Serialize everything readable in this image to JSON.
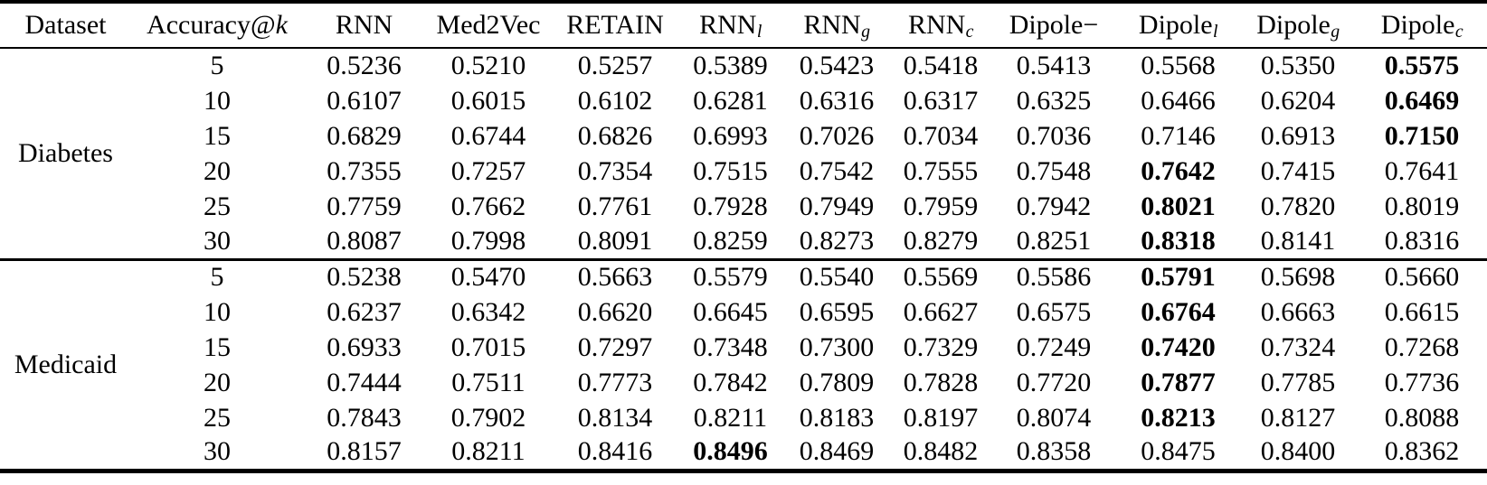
{
  "colors": {
    "text": "#000000",
    "background": "#ffffff",
    "rule": "#000000"
  },
  "table": {
    "columns": [
      {
        "name": "dataset",
        "label": "Dataset"
      },
      {
        "name": "accuracy-at-k",
        "label": "Accuracy@",
        "italic": "k"
      },
      {
        "name": "rnn",
        "label": "RNN"
      },
      {
        "name": "med2vec",
        "label": "Med2Vec"
      },
      {
        "name": "retain",
        "label": "RETAIN"
      },
      {
        "name": "rnn-l",
        "label": "RNN",
        "sub": "l"
      },
      {
        "name": "rnn-g",
        "label": "RNN",
        "sub": "g"
      },
      {
        "name": "rnn-c",
        "label": "RNN",
        "sub": "c"
      },
      {
        "name": "dipole-minus",
        "label": "Dipole−"
      },
      {
        "name": "dipole-l",
        "label": "Dipole",
        "sub": "l"
      },
      {
        "name": "dipole-g",
        "label": "Dipole",
        "sub": "g"
      },
      {
        "name": "dipole-c",
        "label": "Dipole",
        "sub": "c"
      }
    ],
    "sections": [
      {
        "dataset": "Diabetes",
        "rows": [
          {
            "k": "5",
            "values": [
              "0.5236",
              "0.5210",
              "0.5257",
              "0.5389",
              "0.5423",
              "0.5418",
              "0.5413",
              "0.5568",
              "0.5350",
              "0.5575"
            ],
            "bold": [
              9
            ]
          },
          {
            "k": "10",
            "values": [
              "0.6107",
              "0.6015",
              "0.6102",
              "0.6281",
              "0.6316",
              "0.6317",
              "0.6325",
              "0.6466",
              "0.6204",
              "0.6469"
            ],
            "bold": [
              9
            ]
          },
          {
            "k": "15",
            "values": [
              "0.6829",
              "0.6744",
              "0.6826",
              "0.6993",
              "0.7026",
              "0.7034",
              "0.7036",
              "0.7146",
              "0.6913",
              "0.7150"
            ],
            "bold": [
              9
            ]
          },
          {
            "k": "20",
            "values": [
              "0.7355",
              "0.7257",
              "0.7354",
              "0.7515",
              "0.7542",
              "0.7555",
              "0.7548",
              "0.7642",
              "0.7415",
              "0.7641"
            ],
            "bold": [
              7
            ]
          },
          {
            "k": "25",
            "values": [
              "0.7759",
              "0.7662",
              "0.7761",
              "0.7928",
              "0.7949",
              "0.7959",
              "0.7942",
              "0.8021",
              "0.7820",
              "0.8019"
            ],
            "bold": [
              7
            ]
          },
          {
            "k": "30",
            "values": [
              "0.8087",
              "0.7998",
              "0.8091",
              "0.8259",
              "0.8273",
              "0.8279",
              "0.8251",
              "0.8318",
              "0.8141",
              "0.8316"
            ],
            "bold": [
              7
            ]
          }
        ]
      },
      {
        "dataset": "Medicaid",
        "rows": [
          {
            "k": "5",
            "values": [
              "0.5238",
              "0.5470",
              "0.5663",
              "0.5579",
              "0.5540",
              "0.5569",
              "0.5586",
              "0.5791",
              "0.5698",
              "0.5660"
            ],
            "bold": [
              7
            ]
          },
          {
            "k": "10",
            "values": [
              "0.6237",
              "0.6342",
              "0.6620",
              "0.6645",
              "0.6595",
              "0.6627",
              "0.6575",
              "0.6764",
              "0.6663",
              "0.6615"
            ],
            "bold": [
              7
            ]
          },
          {
            "k": "15",
            "values": [
              "0.6933",
              "0.7015",
              "0.7297",
              "0.7348",
              "0.7300",
              "0.7329",
              "0.7249",
              "0.7420",
              "0.7324",
              "0.7268"
            ],
            "bold": [
              7
            ]
          },
          {
            "k": "20",
            "values": [
              "0.7444",
              "0.7511",
              "0.7773",
              "0.7842",
              "0.7809",
              "0.7828",
              "0.7720",
              "0.7877",
              "0.7785",
              "0.7736"
            ],
            "bold": [
              7
            ]
          },
          {
            "k": "25",
            "values": [
              "0.7843",
              "0.7902",
              "0.8134",
              "0.8211",
              "0.8183",
              "0.8197",
              "0.8074",
              "0.8213",
              "0.8127",
              "0.8088"
            ],
            "bold": [
              7
            ]
          },
          {
            "k": "30",
            "values": [
              "0.8157",
              "0.8211",
              "0.8416",
              "0.8496",
              "0.8469",
              "0.8482",
              "0.8358",
              "0.8475",
              "0.8400",
              "0.8362"
            ],
            "bold": [
              3
            ]
          }
        ]
      }
    ]
  }
}
